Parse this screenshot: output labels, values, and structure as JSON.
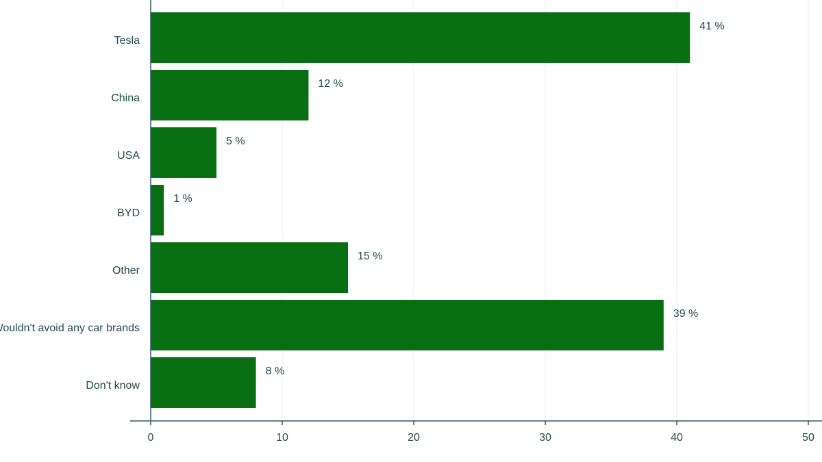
{
  "chart_data": {
    "type": "bar",
    "orientation": "horizontal",
    "categories": [
      "Tesla",
      "China",
      "USA",
      "BYD",
      "Other",
      "Wouldn't avoid any car brands",
      "Don't know"
    ],
    "values": [
      41,
      12,
      5,
      1,
      15,
      39,
      8
    ],
    "value_labels": [
      "41 %",
      "12 %",
      "5 %",
      "1 %",
      "15 %",
      "39 %",
      "8 %"
    ],
    "color": "#076e12",
    "xlim": [
      0,
      50
    ],
    "xticks": [
      0,
      10,
      20,
      30,
      40,
      50
    ],
    "grid": true
  }
}
